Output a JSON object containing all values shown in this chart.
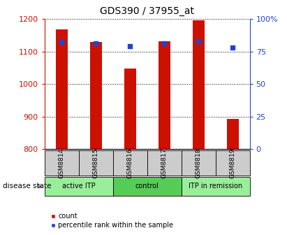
{
  "title": "GDS390 / 37955_at",
  "samples": [
    "GSM8814",
    "GSM8815",
    "GSM8816",
    "GSM8817",
    "GSM8818",
    "GSM8819"
  ],
  "counts": [
    1168,
    1130,
    1047,
    1132,
    1195,
    893
  ],
  "percentile_ranks": [
    82,
    81,
    79,
    81,
    83,
    78
  ],
  "ylim_left": [
    800,
    1200
  ],
  "ylim_right": [
    0,
    100
  ],
  "yticks_left": [
    800,
    900,
    1000,
    1100,
    1200
  ],
  "yticks_right": [
    0,
    25,
    50,
    75,
    100
  ],
  "yticklabels_right": [
    "0",
    "25",
    "50",
    "75",
    "100%"
  ],
  "bar_color": "#cc1100",
  "dot_color": "#2244cc",
  "bar_width": 0.35,
  "background_color": "#ffffff",
  "left_tick_color": "#cc1100",
  "right_tick_color": "#2244cc",
  "disease_state_label": "disease state",
  "legend_count_label": "count",
  "legend_percentile_label": "percentile rank within the sample",
  "sample_box_color": "#cccccc",
  "group_defs": [
    {
      "start": 0,
      "end": 2,
      "label": "active ITP",
      "color": "#99ee99"
    },
    {
      "start": 2,
      "end": 4,
      "label": "control",
      "color": "#55cc55"
    },
    {
      "start": 4,
      "end": 6,
      "label": "ITP in remission",
      "color": "#99ee99"
    }
  ]
}
